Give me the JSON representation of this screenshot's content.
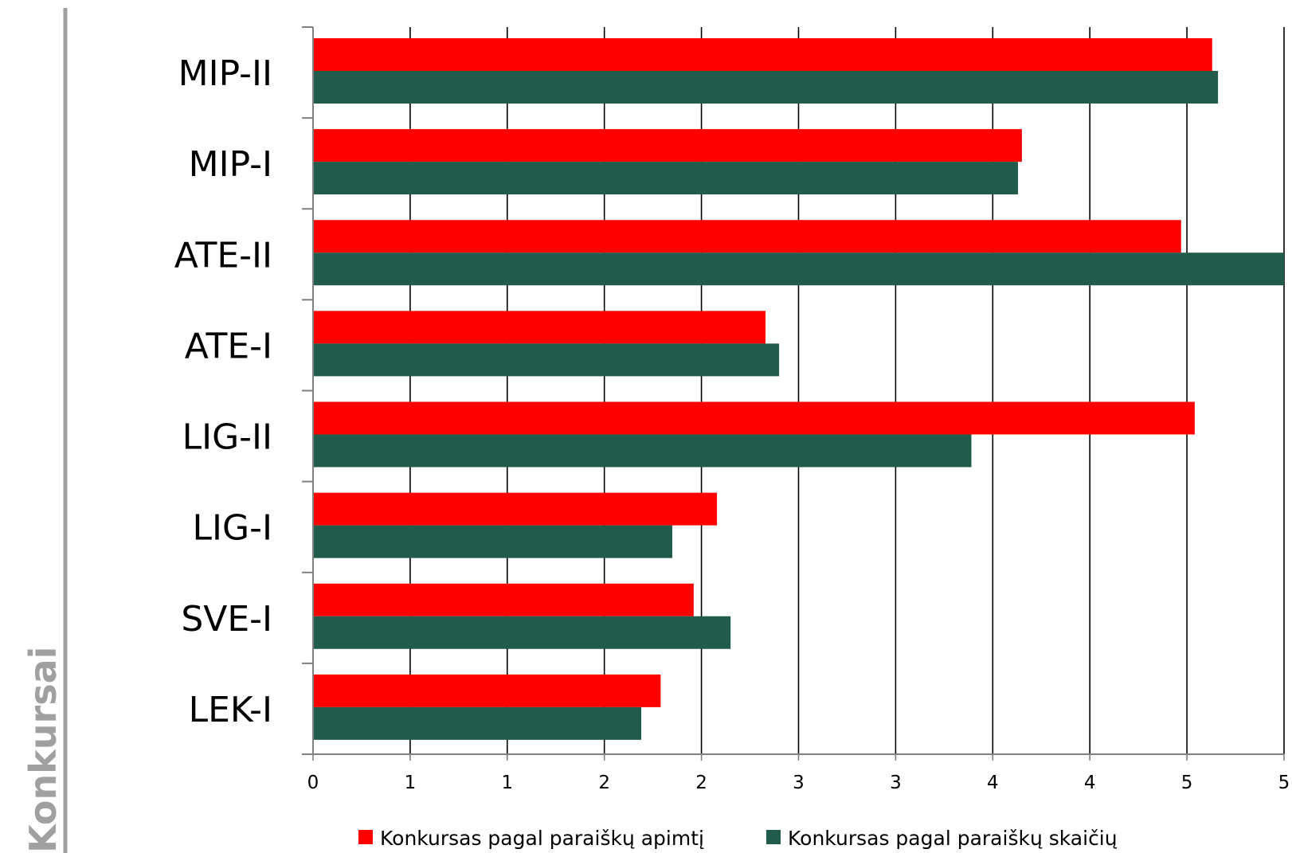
{
  "chart_data": {
    "type": "bar",
    "orientation": "horizontal",
    "title": "",
    "ylabel": "Konkursai",
    "xlabel": "",
    "categories": [
      "MIP-II",
      "MIP-I",
      "ATE-II",
      "ATE-I",
      "LIG-II",
      "LIG-I",
      "SVE-I",
      "LEK-I"
    ],
    "series": [
      {
        "name": "Konkursas pagal paraiškų apimtį",
        "color": "#ff0000",
        "values": [
          4.63,
          3.65,
          4.47,
          2.33,
          4.54,
          2.08,
          1.96,
          1.79
        ]
      },
      {
        "name": "Konkursas pagal paraiškų skaičių",
        "color": "#215b4b",
        "values": [
          4.66,
          3.63,
          5.0,
          2.4,
          3.39,
          1.85,
          2.15,
          1.69
        ]
      }
    ],
    "xlim": [
      0,
      5
    ],
    "x_ticks": [
      0,
      0.5,
      1,
      1.5,
      2,
      2.5,
      3,
      3.5,
      4,
      4.5,
      5
    ],
    "x_tick_labels": [
      "0",
      "1",
      "1",
      "2",
      "2",
      "3",
      "3",
      "4",
      "4",
      "5",
      "5"
    ],
    "grid": "vertical",
    "legend_position": "bottom"
  }
}
